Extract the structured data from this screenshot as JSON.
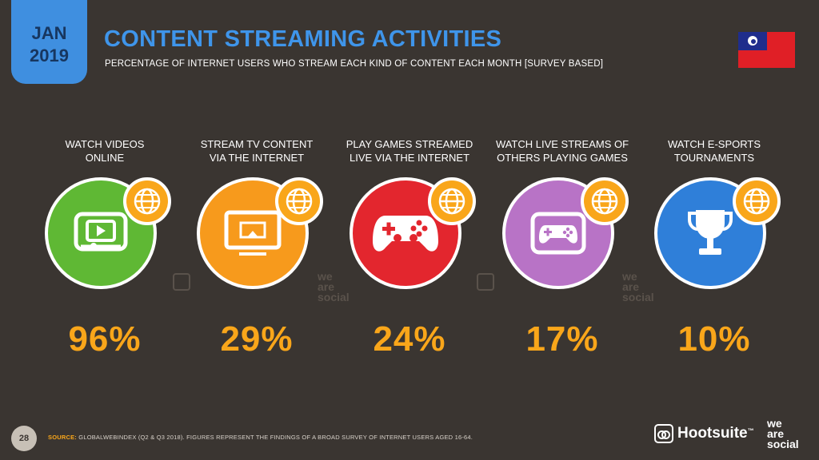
{
  "header": {
    "date_month": "JAN",
    "date_year": "2019",
    "title": "CONTENT STREAMING ACTIVITIES",
    "subtitle": "PERCENTAGE OF INTERNET USERS WHO STREAM EACH KIND OF CONTENT EACH MONTH [SURVEY BASED]"
  },
  "items": [
    {
      "label_line1": "WATCH VIDEOS",
      "label_line2": "ONLINE",
      "value": "96%",
      "color": "#5fb834",
      "icon": "video-play-icon"
    },
    {
      "label_line1": "STREAM TV CONTENT",
      "label_line2": "VIA THE INTERNET",
      "value": "29%",
      "color": "#f79a1c",
      "icon": "tv-airplay-icon"
    },
    {
      "label_line1": "PLAY GAMES STREAMED",
      "label_line2": "LIVE VIA THE INTERNET",
      "value": "24%",
      "color": "#e3262e",
      "icon": "gamepad-icon"
    },
    {
      "label_line1": "WATCH LIVE STREAMS OF",
      "label_line2": "OTHERS PLAYING GAMES",
      "value": "17%",
      "color": "#b873c6",
      "icon": "screen-gamepad-icon"
    },
    {
      "label_line1": "WATCH E-SPORTS",
      "label_line2": "TOURNAMENTS",
      "value": "10%",
      "color": "#2f7fd9",
      "icon": "trophy-icon"
    }
  ],
  "watermark": {
    "line1": "we",
    "line2": "are",
    "line3": "social"
  },
  "footer": {
    "page_number": "28",
    "source_label": "SOURCE:",
    "source_text": " GLOBALWEBINDEX (Q2 & Q3 2018). FIGURES REPRESENT THE FINDINGS OF A BROAD SURVEY OF INTERNET USERS AGED 16-64.",
    "hootsuite": "Hootsuite",
    "hootsuite_tm": "™",
    "was_line1": "we",
    "was_line2": "are",
    "was_line3": "social"
  },
  "colors": {
    "accent": "#3f95ea",
    "value": "#f9a61a",
    "background": "#3a3531"
  }
}
